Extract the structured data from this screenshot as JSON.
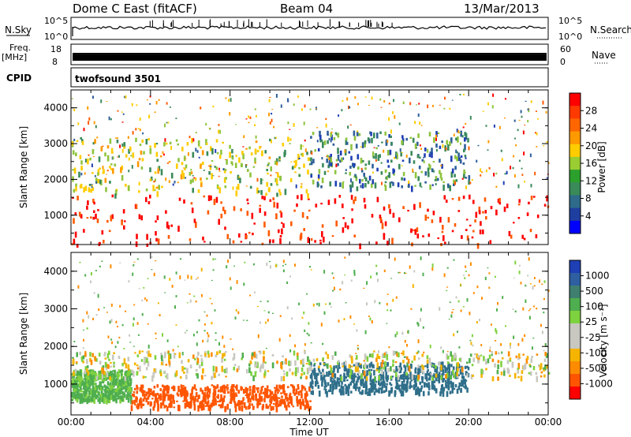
{
  "header": {
    "station": "Dome C East (fitACF)",
    "beam": "Beam 04",
    "date": "13/Mar/2013"
  },
  "panels": {
    "nsky_label": "N.Sky",
    "nsky_ticks": [
      "10^5",
      "10^0"
    ],
    "nsearch_label": "N.Search",
    "nsearch_ticks": [
      "10^5",
      "10^0"
    ],
    "freq_label": "Freq.",
    "freq_unit": "[MHz]",
    "freq_ticks": [
      "18",
      "8"
    ],
    "nave_label": "Nave",
    "nave_ticks": [
      "60",
      "0"
    ],
    "cpid_label": "CPID",
    "cpid_value": "twofsound 3501"
  },
  "colorbars": {
    "power": {
      "label": "Power [dB]",
      "ticks": [
        "28",
        "24",
        "20",
        "16",
        "12",
        "8",
        "4"
      ],
      "colors": [
        "#ff0000",
        "#ff3a00",
        "#ff6600",
        "#ff9900",
        "#ffcc00",
        "#9acd32",
        "#2ca02c",
        "#3a8a5a",
        "#2e6b8a",
        "#1f3fa0",
        "#0000ff"
      ]
    },
    "velocity": {
      "label": "Velocity [m s⁻¹]",
      "ticks": [
        "1000",
        "500",
        "100",
        "25",
        "-25",
        "-100",
        "-500",
        "-1000"
      ],
      "colors": [
        "#1f3fb4",
        "#2f5fa0",
        "#3f7f6f",
        "#4fae4f",
        "#7fd23f",
        "#c8c8c0",
        "#c8c8c0",
        "#f5b400",
        "#ff8c00",
        "#ff5500",
        "#ff0000"
      ]
    }
  },
  "chart_data": [
    {
      "type": "heatmap",
      "name": "power",
      "ylabel": "Slant Range [km]",
      "yticks": [
        "1000",
        "2000",
        "3000",
        "4000"
      ],
      "ylim": [
        180,
        4500
      ],
      "xlim": [
        0,
        24
      ],
      "units": "dB",
      "bands": [
        {
          "t0": 0,
          "t1": 24,
          "r0": 200,
          "r1": 1600,
          "value": 28
        },
        {
          "t0": 0,
          "t1": 12,
          "r0": 1600,
          "r1": 3200,
          "value": 14
        },
        {
          "t0": 12,
          "t1": 20,
          "r0": 1800,
          "r1": 3400,
          "value": 8
        }
      ]
    },
    {
      "type": "heatmap",
      "name": "velocity",
      "ylabel": "Slant Range [km]",
      "yticks": [
        "1000",
        "2000",
        "3000",
        "4000"
      ],
      "ylim": [
        180,
        4500
      ],
      "xlim": [
        0,
        24
      ],
      "units": "m s-1",
      "bands": [
        {
          "t0": 0,
          "t1": 3,
          "r0": 600,
          "r1": 1400,
          "value": 100
        },
        {
          "t0": 3,
          "t1": 12,
          "r0": 400,
          "r1": 1000,
          "value": -500
        },
        {
          "t0": 12,
          "t1": 20,
          "r0": 800,
          "r1": 1600,
          "value": 500
        },
        {
          "t0": 0,
          "t1": 24,
          "r0": 1200,
          "r1": 1900,
          "value": 0
        }
      ]
    }
  ],
  "xaxis": {
    "ticks": [
      "00:00",
      "04:00",
      "08:00",
      "12:00",
      "16:00",
      "20:00",
      "00:00"
    ],
    "label": "Time UT"
  }
}
